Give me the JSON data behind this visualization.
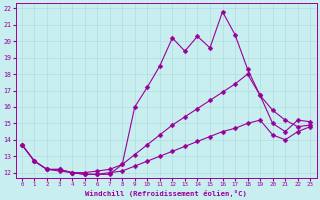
{
  "xlabel": "Windchill (Refroidissement éolien,°C)",
  "bg_color": "#c8eef0",
  "line_color": "#990099",
  "grid_color": "#b0dde0",
  "xlim": [
    0,
    23
  ],
  "ylim": [
    12,
    22
  ],
  "xticks": [
    0,
    1,
    2,
    3,
    4,
    5,
    6,
    7,
    8,
    9,
    10,
    11,
    12,
    13,
    14,
    15,
    16,
    17,
    18,
    19,
    20,
    21,
    22,
    23
  ],
  "yticks": [
    12,
    13,
    14,
    15,
    16,
    17,
    18,
    19,
    20,
    21,
    22
  ],
  "line1_x": [
    0,
    1,
    2,
    3,
    4,
    5,
    6,
    7,
    8,
    9,
    10,
    11,
    12,
    13,
    14,
    15,
    16,
    17,
    18,
    19,
    20,
    21,
    22,
    23
  ],
  "line1_y": [
    13.7,
    12.7,
    12.2,
    12.2,
    12.0,
    11.9,
    11.9,
    11.9,
    12.5,
    16.0,
    17.2,
    18.5,
    20.2,
    19.4,
    20.3,
    19.6,
    21.8,
    20.4,
    18.3,
    16.7,
    15.8,
    15.2,
    14.8,
    14.9
  ],
  "line2_x": [
    0,
    1,
    2,
    3,
    4,
    5,
    6,
    7,
    8,
    9,
    10,
    11,
    12,
    13,
    14,
    15,
    16,
    17,
    18,
    19,
    20,
    21,
    22,
    23
  ],
  "line2_y": [
    13.7,
    12.7,
    12.2,
    12.2,
    12.0,
    12.0,
    12.1,
    12.2,
    12.5,
    13.1,
    13.7,
    14.3,
    14.9,
    15.4,
    15.9,
    16.4,
    16.9,
    17.4,
    18.0,
    16.7,
    15.0,
    14.5,
    15.2,
    15.1
  ],
  "line3_x": [
    0,
    1,
    2,
    3,
    4,
    5,
    6,
    7,
    8,
    9,
    10,
    11,
    12,
    13,
    14,
    15,
    16,
    17,
    18,
    19,
    20,
    21,
    22,
    23
  ],
  "line3_y": [
    13.7,
    12.7,
    12.2,
    12.1,
    12.0,
    11.9,
    11.9,
    12.0,
    12.1,
    12.4,
    12.7,
    13.0,
    13.3,
    13.6,
    13.9,
    14.2,
    14.5,
    14.7,
    15.0,
    15.2,
    14.3,
    14.0,
    14.5,
    14.8
  ]
}
